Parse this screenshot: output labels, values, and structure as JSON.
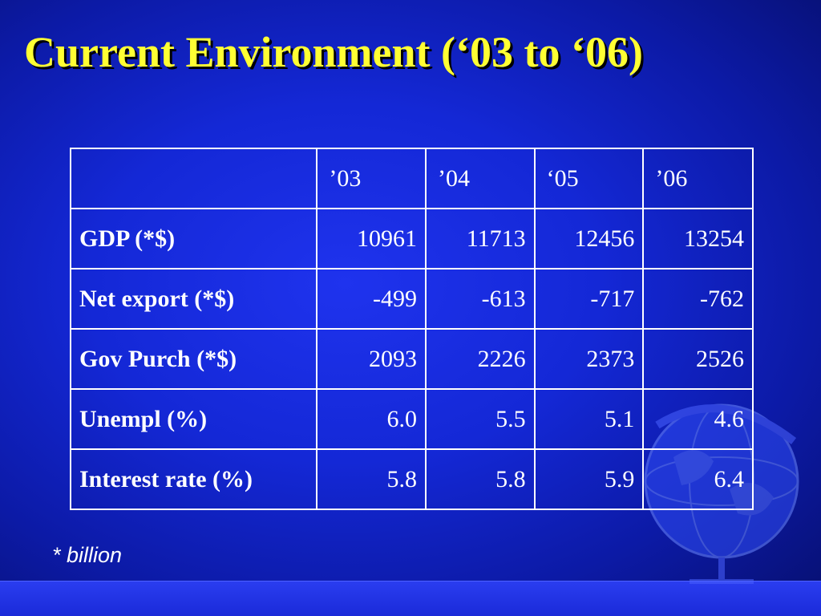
{
  "slide": {
    "title": "Current Environment (‘03 to ‘06)",
    "footnote": "* billion"
  },
  "table": {
    "header": [
      "",
      "’03",
      "’04",
      "‘05",
      "’06"
    ],
    "rows": [
      {
        "label": "GDP (*$)",
        "values": [
          "10961",
          "11713",
          "12456",
          "13254"
        ]
      },
      {
        "label": "Net export (*$)",
        "values": [
          "-499",
          "-613",
          "-717",
          "-762"
        ]
      },
      {
        "label": "Gov Purch (*$)",
        "values": [
          "2093",
          "2226",
          "2373",
          "2526"
        ]
      },
      {
        "label": "Unempl (%)",
        "values": [
          "6.0",
          "5.5",
          "5.1",
          "4.6"
        ]
      },
      {
        "label": "Interest rate (%)",
        "values": [
          "5.8",
          "5.8",
          "5.9",
          "6.4"
        ]
      }
    ]
  },
  "colors": {
    "background": "#1428d6",
    "title": "#ffff33",
    "text": "#ffffff"
  },
  "decoration": {
    "icon": "globe-icon"
  }
}
